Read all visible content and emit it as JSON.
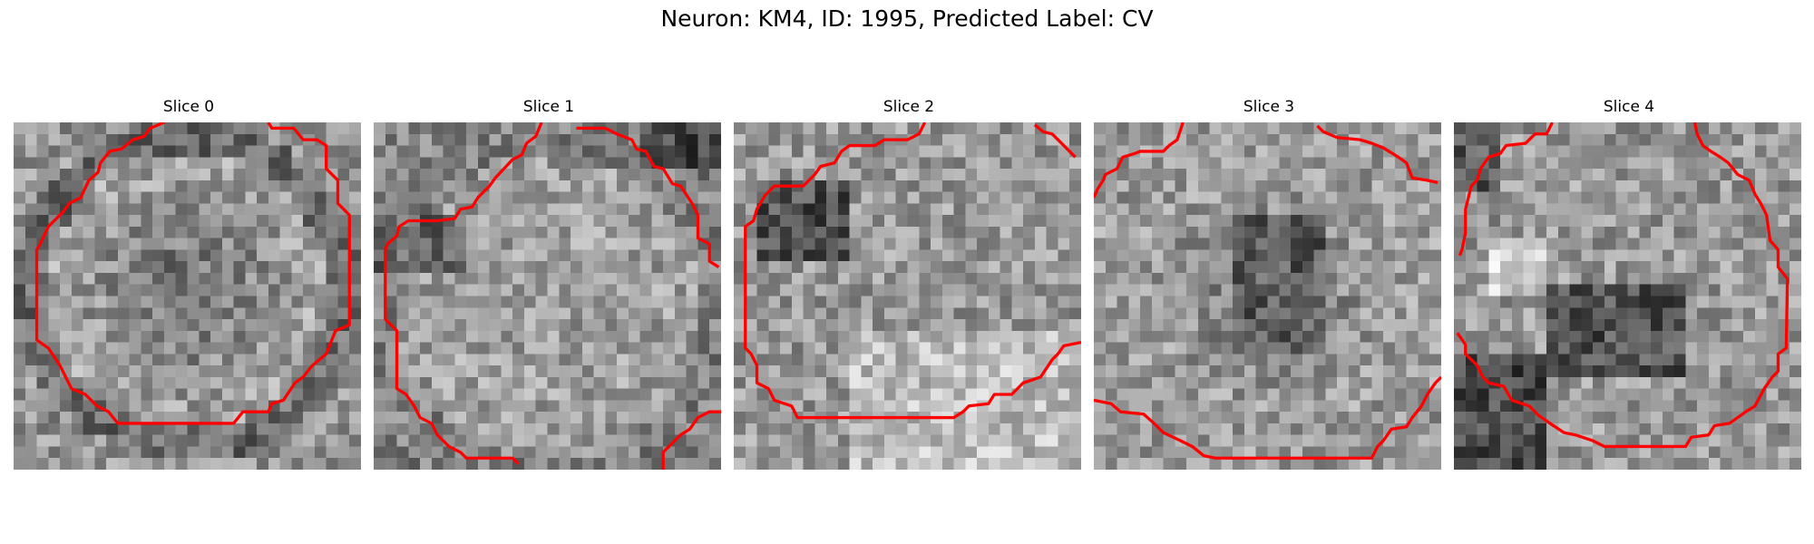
{
  "figure": {
    "title": "Neuron: KM4, ID: 1995, Predicted Label: CV"
  },
  "slices": [
    {
      "label": "Slice 0"
    },
    {
      "label": "Slice 1"
    },
    {
      "label": "Slice 2"
    },
    {
      "label": "Slice 3"
    },
    {
      "label": "Slice 4"
    }
  ],
  "colors": {
    "contour": "#ff0000",
    "background": "#ffffff"
  }
}
